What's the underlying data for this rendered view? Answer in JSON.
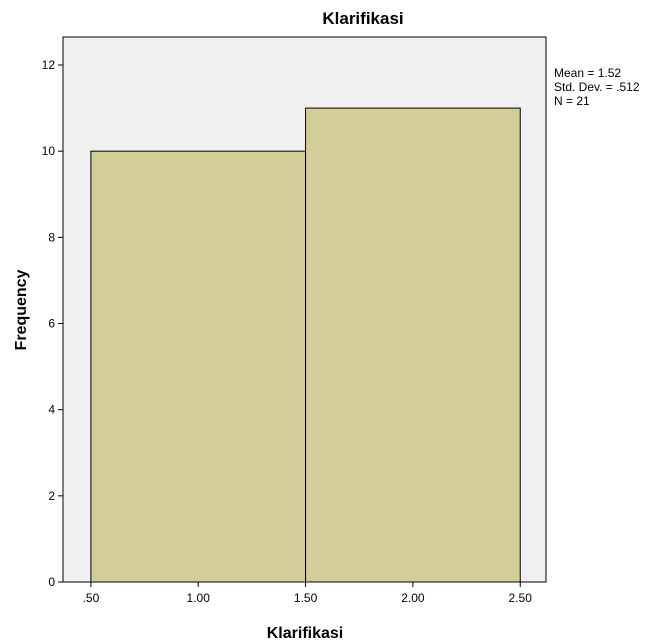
{
  "chart_data": {
    "type": "bar",
    "title": "Klarifikasi",
    "xlabel": "Klarifikasi",
    "ylabel": "Frequency",
    "bins": [
      {
        "start": 0.5,
        "end": 1.5,
        "count": 10
      },
      {
        "start": 1.5,
        "end": 2.5,
        "count": 11
      }
    ],
    "x_ticks": [
      {
        "value": 0.5,
        "label": ".50"
      },
      {
        "value": 1.0,
        "label": "1.00"
      },
      {
        "value": 1.5,
        "label": "1.50"
      },
      {
        "value": 2.0,
        "label": "2.00"
      },
      {
        "value": 2.5,
        "label": "2.50"
      }
    ],
    "y_ticks": [
      0,
      2,
      4,
      6,
      8,
      10,
      12
    ],
    "xlim": [
      0.37,
      2.62
    ],
    "ylim": [
      0,
      12.65
    ],
    "grid": false,
    "legend": "none",
    "stats": {
      "mean": "Mean = 1.52",
      "std_dev": "Std. Dev. = .512",
      "n": "N = 21"
    },
    "colors": {
      "plot_background": "#f0f0f0",
      "bar_fill": "#d3ce97",
      "bar_stroke": "#000000"
    }
  }
}
